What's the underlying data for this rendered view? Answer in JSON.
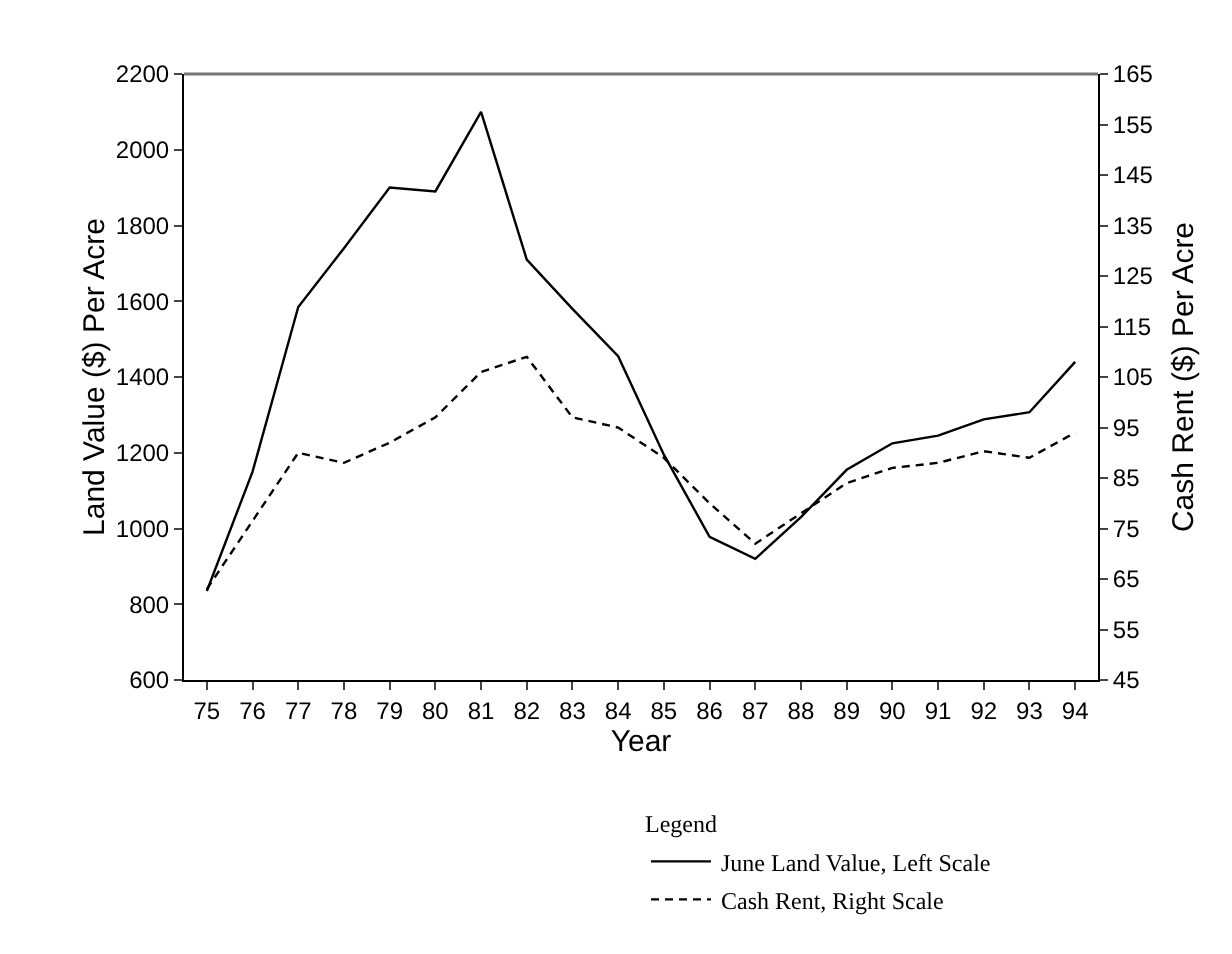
{
  "chart_data": {
    "type": "line",
    "xlabel": "Year",
    "ylabel": "Land Value ($) Per Acre",
    "y2label": "Cash Rent ($) Per Acre",
    "legend_title": "Legend",
    "categories": [
      "75",
      "76",
      "77",
      "78",
      "79",
      "80",
      "81",
      "82",
      "83",
      "84",
      "85",
      "86",
      "87",
      "88",
      "89",
      "90",
      "91",
      "92",
      "93",
      "94"
    ],
    "series": [
      {
        "name": "June Land Value, Left Scale",
        "color": "#000000",
        "line_style": "solid",
        "values": [
          835,
          1150,
          1585,
          1740,
          1900,
          1890,
          2100,
          1710,
          1580,
          1455,
          1195,
          978,
          920,
          1030,
          1155,
          1225,
          1245,
          1288,
          1307,
          1440
        ]
      },
      {
        "name": "Cash Rent, Right Scale",
        "color": "#000000",
        "line_style": "dashed",
        "axis": "y2",
        "values": [
          63,
          76.5,
          90,
          88,
          92,
          97,
          106,
          109,
          97,
          95,
          89,
          80,
          72,
          78,
          84,
          87,
          88,
          90.3,
          89,
          94
        ]
      }
    ],
    "ylim": [
      600,
      2200
    ],
    "yticks": [
      600,
      800,
      1000,
      1200,
      1400,
      1600,
      1800,
      2000,
      2200
    ],
    "y2lim": [
      45,
      165
    ],
    "y2ticks": [
      45,
      55,
      65,
      75,
      85,
      95,
      105,
      115,
      125,
      135,
      145,
      155,
      165
    ],
    "legend": "bottom",
    "marker": "none"
  }
}
